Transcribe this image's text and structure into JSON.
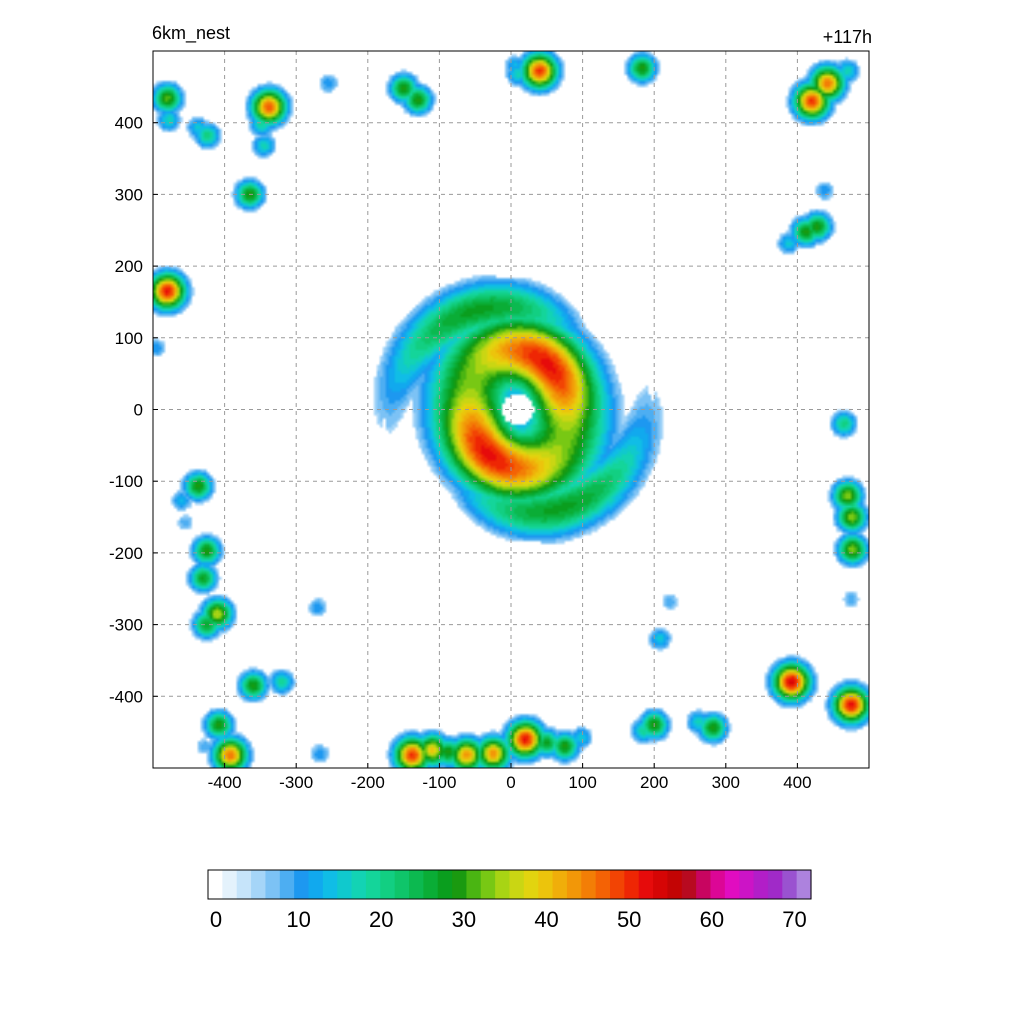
{
  "panel": {
    "title": "6km_nest",
    "forecast_hour": "+117h"
  },
  "chart_data": {
    "type": "heatmap",
    "title": "6km_nest",
    "annotation": "+117h",
    "xlabel": "",
    "ylabel": "",
    "xlim": [
      -500,
      500
    ],
    "ylim": [
      -500,
      500
    ],
    "x_ticks": [
      -400,
      -300,
      -200,
      -100,
      0,
      100,
      200,
      300,
      400
    ],
    "y_ticks": [
      400,
      300,
      200,
      100,
      0,
      -100,
      -200,
      -300,
      -400
    ],
    "grid": true,
    "colorbar": {
      "min": 0,
      "max": 72,
      "ticks": [
        0,
        10,
        20,
        30,
        40,
        50,
        60,
        70
      ],
      "colors": [
        "#ffffff",
        "#e4f2fc",
        "#c6e4fa",
        "#a5d5f8",
        "#7cc2f5",
        "#4daef2",
        "#1d98f0",
        "#11a9ee",
        "#10bde6",
        "#10c9cd",
        "#13d3b4",
        "#14d59a",
        "#12cf82",
        "#0fc56a",
        "#0cb950",
        "#0aad36",
        "#0a9e1e",
        "#1a9a10",
        "#4ab512",
        "#78c814",
        "#a8d414",
        "#cad613",
        "#e2d40f",
        "#ecc40c",
        "#f0ae0a",
        "#f29708",
        "#f37e06",
        "#f46205",
        "#f24404",
        "#ee2604",
        "#e60b0b",
        "#d60505",
        "#c30404",
        "#b80a20",
        "#c80560",
        "#dc0696",
        "#e10cc0",
        "#cc14c6",
        "#b21ec8",
        "#a02ac8",
        "#9a52d0",
        "#ad82de"
      ]
    },
    "features": [
      {
        "name": "hurricane-spiral",
        "x": 10,
        "y": 0,
        "peak": 52
      },
      {
        "name": "cell",
        "x": -480,
        "y": 165,
        "peak": 52
      },
      {
        "name": "cell",
        "x": -338,
        "y": 422,
        "peak": 48
      },
      {
        "name": "cell",
        "x": -480,
        "y": 434,
        "peak": 32
      },
      {
        "name": "cell",
        "x": -478,
        "y": 404,
        "peak": 18
      },
      {
        "name": "cell",
        "x": -437,
        "y": 393,
        "peak": 16
      },
      {
        "name": "cell",
        "x": -424,
        "y": 382,
        "peak": 22
      },
      {
        "name": "cell",
        "x": -348,
        "y": 398,
        "peak": 20
      },
      {
        "name": "cell",
        "x": -345,
        "y": 368,
        "peak": 18
      },
      {
        "name": "cell",
        "x": -365,
        "y": 300,
        "peak": 30
      },
      {
        "name": "cell",
        "x": -255,
        "y": 455,
        "peak": 12
      },
      {
        "name": "cell",
        "x": -150,
        "y": 448,
        "peak": 30
      },
      {
        "name": "cell",
        "x": -130,
        "y": 432,
        "peak": 30
      },
      {
        "name": "cell",
        "x": 5,
        "y": 480,
        "peak": 14
      },
      {
        "name": "cell",
        "x": 10,
        "y": 468,
        "peak": 18
      },
      {
        "name": "cell",
        "x": 40,
        "y": 472,
        "peak": 50
      },
      {
        "name": "cell",
        "x": 183,
        "y": 476,
        "peak": 30
      },
      {
        "name": "cell",
        "x": 420,
        "y": 430,
        "peak": 50
      },
      {
        "name": "cell",
        "x": 442,
        "y": 455,
        "peak": 46
      },
      {
        "name": "cell",
        "x": 470,
        "y": 472,
        "peak": 18
      },
      {
        "name": "cell",
        "x": 438,
        "y": 305,
        "peak": 12
      },
      {
        "name": "cell",
        "x": 412,
        "y": 248,
        "peak": 30
      },
      {
        "name": "cell",
        "x": 428,
        "y": 255,
        "peak": 30
      },
      {
        "name": "cell",
        "x": 388,
        "y": 232,
        "peak": 16
      },
      {
        "name": "cell",
        "x": 465,
        "y": -20,
        "peak": 22
      },
      {
        "name": "cell",
        "x": -495,
        "y": 86,
        "peak": 12
      },
      {
        "name": "cell",
        "x": -437,
        "y": -107,
        "peak": 30
      },
      {
        "name": "cell",
        "x": -460,
        "y": -127,
        "peak": 14
      },
      {
        "name": "cell",
        "x": -455,
        "y": -158,
        "peak": 10
      },
      {
        "name": "cell",
        "x": -425,
        "y": -197,
        "peak": 30
      },
      {
        "name": "cell",
        "x": -430,
        "y": -235,
        "peak": 28
      },
      {
        "name": "cell",
        "x": -410,
        "y": -285,
        "peak": 36
      },
      {
        "name": "cell",
        "x": -425,
        "y": -300,
        "peak": 28
      },
      {
        "name": "cell",
        "x": -270,
        "y": -276,
        "peak": 12
      },
      {
        "name": "cell",
        "x": -360,
        "y": -385,
        "peak": 30
      },
      {
        "name": "cell",
        "x": -320,
        "y": -380,
        "peak": 20
      },
      {
        "name": "cell",
        "x": -408,
        "y": -440,
        "peak": 30
      },
      {
        "name": "cell",
        "x": -392,
        "y": -482,
        "peak": 46
      },
      {
        "name": "cell",
        "x": -428,
        "y": -470,
        "peak": 10
      },
      {
        "name": "cell",
        "x": -267,
        "y": -480,
        "peak": 12
      },
      {
        "name": "cell",
        "x": -138,
        "y": -482,
        "peak": 50
      },
      {
        "name": "cell",
        "x": -110,
        "y": -475,
        "peak": 40
      },
      {
        "name": "cell",
        "x": -88,
        "y": -478,
        "peak": 30
      },
      {
        "name": "cell",
        "x": -62,
        "y": -482,
        "peak": 44
      },
      {
        "name": "cell",
        "x": -25,
        "y": -480,
        "peak": 44
      },
      {
        "name": "cell",
        "x": 20,
        "y": -460,
        "peak": 52
      },
      {
        "name": "cell",
        "x": 50,
        "y": -465,
        "peak": 28
      },
      {
        "name": "cell",
        "x": 75,
        "y": -470,
        "peak": 30
      },
      {
        "name": "cell",
        "x": 98,
        "y": -458,
        "peak": 16
      },
      {
        "name": "cell",
        "x": 200,
        "y": -440,
        "peak": 30
      },
      {
        "name": "cell",
        "x": 185,
        "y": -448,
        "peak": 20
      },
      {
        "name": "cell",
        "x": 208,
        "y": -320,
        "peak": 16
      },
      {
        "name": "cell",
        "x": 222,
        "y": -268,
        "peak": 10
      },
      {
        "name": "cell",
        "x": 262,
        "y": -436,
        "peak": 18
      },
      {
        "name": "cell",
        "x": 282,
        "y": -444,
        "peak": 30
      },
      {
        "name": "cell",
        "x": 392,
        "y": -380,
        "peak": 54
      },
      {
        "name": "cell",
        "x": 475,
        "y": -412,
        "peak": 52
      },
      {
        "name": "cell",
        "x": 470,
        "y": -120,
        "peak": 34
      },
      {
        "name": "cell",
        "x": 476,
        "y": -150,
        "peak": 34
      },
      {
        "name": "cell",
        "x": 477,
        "y": -195,
        "peak": 34
      },
      {
        "name": "cell",
        "x": 475,
        "y": -265,
        "peak": 10
      }
    ]
  }
}
